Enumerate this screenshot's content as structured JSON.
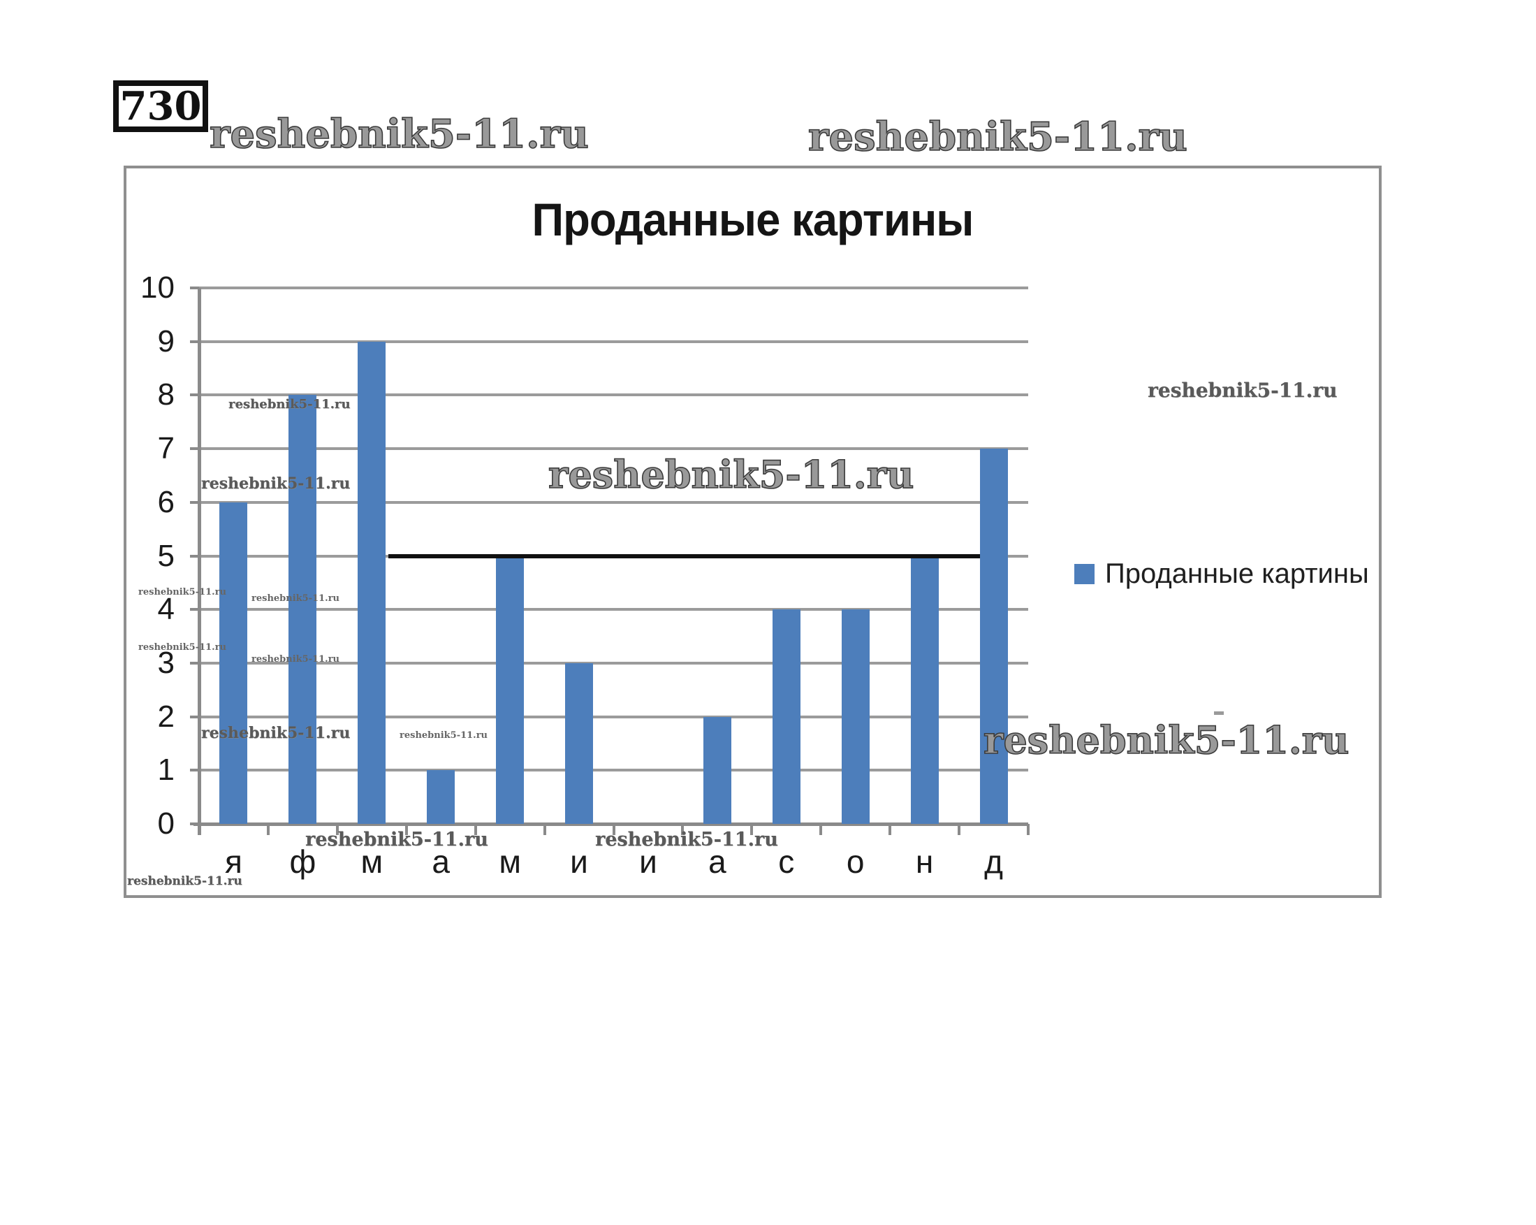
{
  "badge": "730",
  "watermark_text": "reshebnik5-11.ru",
  "chart_data": {
    "type": "bar",
    "title": "Проданные картины",
    "categories": [
      "я",
      "ф",
      "м",
      "а",
      "м",
      "и",
      "и",
      "а",
      "с",
      "о",
      "н",
      "д"
    ],
    "series": [
      {
        "name": "Проданные картины",
        "values": [
          6,
          8,
          9,
          1,
          5,
          3,
          0,
          2,
          4,
          4,
          5,
          7
        ]
      }
    ],
    "ylim": [
      0,
      10
    ],
    "ytick_interval": 1,
    "ytick_labels": [
      "0",
      "1",
      "2",
      "3",
      "4",
      "5",
      "6",
      "7",
      "8",
      "9",
      "10"
    ],
    "grid": true,
    "gridline_color": "#9b9b9b",
    "bar_color": "#4D7EBB",
    "legend_position": "right",
    "annotations": [
      {
        "type": "hline",
        "value": 5,
        "color": "#101010",
        "from": "right edge of bar 3 (м/March)",
        "to": "left edge of bar 12 (д/December)"
      }
    ]
  },
  "legend": {
    "swatch_color": "#4D7EBB",
    "label": "Проданные картины"
  }
}
